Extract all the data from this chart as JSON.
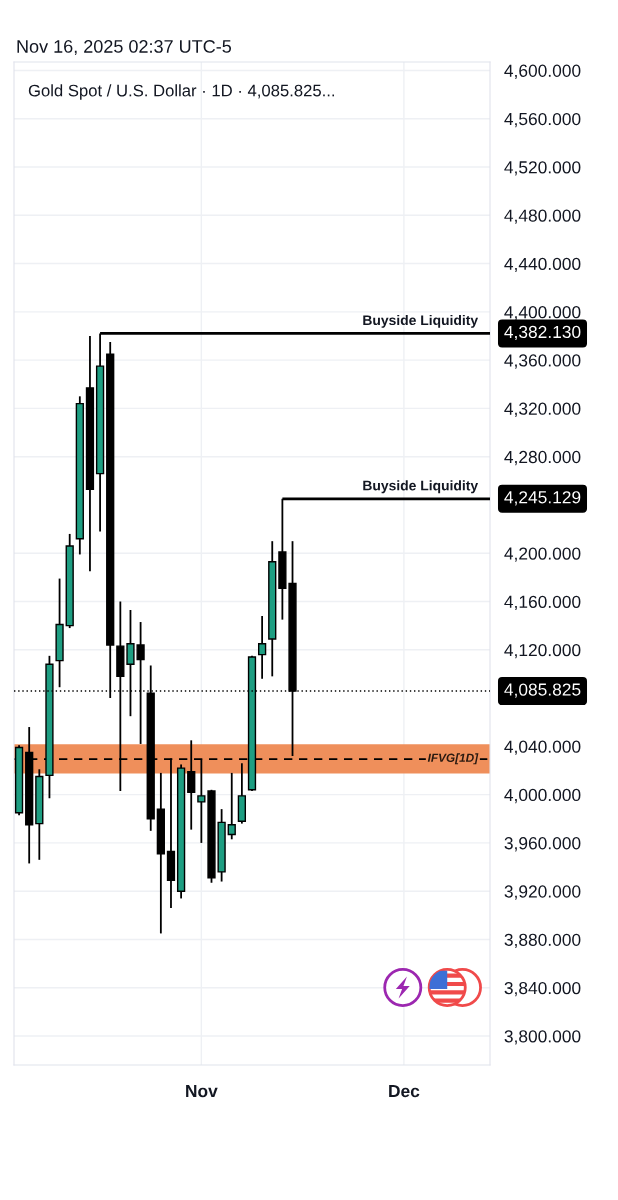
{
  "chart_data": {
    "type": "candlestick",
    "title": "Gold Spot / U.S. Dollar · 1D · 4,085.825...",
    "subtitle": "Nov 16, 2025 02:37 UTC-5",
    "categories": [
      null,
      null,
      null,
      null,
      null,
      null,
      null,
      null,
      null,
      null,
      null,
      null,
      null,
      null,
      null,
      null,
      null,
      null,
      "Nov",
      null,
      null,
      null,
      null,
      null,
      null,
      null,
      null,
      null,
      null,
      null,
      null,
      null,
      null,
      null,
      null,
      null,
      null,
      null,
      "Dec",
      null,
      null,
      null,
      null,
      null,
      null,
      null,
      null
    ],
    "ohlc": [
      [
        3985,
        4041,
        3983,
        4039
      ],
      [
        4035,
        4056,
        3943,
        3975
      ],
      [
        3976,
        4021,
        3946,
        4015
      ],
      [
        4016,
        4115,
        3997,
        4108
      ],
      [
        4111,
        4179,
        4089,
        4141
      ],
      [
        4140,
        4216,
        4138,
        4206
      ],
      [
        4212,
        4330,
        4199,
        4324
      ],
      [
        4337,
        4380,
        4185,
        4253
      ],
      [
        4266,
        4382.13,
        4218,
        4355
      ],
      [
        4365,
        4375,
        4080,
        4124
      ],
      [
        4123,
        4160,
        4003,
        4098
      ],
      [
        4108,
        4153,
        4065,
        4125
      ],
      [
        4124,
        4143,
        4042,
        4112
      ],
      [
        4084,
        4107,
        3970,
        3980
      ],
      [
        3988,
        4018,
        3885,
        3951
      ],
      [
        3953,
        4030,
        3906,
        3929
      ],
      [
        3920,
        4025,
        3914,
        4022
      ],
      [
        4019,
        4045,
        3971,
        4002
      ],
      [
        3994,
        4029,
        3960,
        3999
      ],
      [
        4003,
        4004,
        3927,
        3931
      ],
      [
        3936,
        3988,
        3928,
        3977
      ],
      [
        3967,
        4018,
        3963,
        3975
      ],
      [
        3978,
        4026,
        3976,
        3999
      ],
      [
        4004,
        4115,
        4003,
        4114
      ],
      [
        4116,
        4148,
        4096,
        4125
      ],
      [
        4129,
        4210,
        4098,
        4193
      ],
      [
        4201,
        4245.129,
        4145,
        4171
      ],
      [
        4175,
        4210,
        4032,
        4085.825
      ],
      null,
      null,
      null,
      null,
      null,
      null,
      null,
      null,
      null,
      null,
      null,
      null,
      null,
      null,
      null,
      null,
      null,
      null,
      null
    ],
    "colors": [
      "#1e9e82",
      "#000000",
      "#1e9e82",
      "#1e9e82",
      "#1e9e82",
      "#1e9e82",
      "#1e9e82",
      "#000000",
      "#1e9e82",
      "#000000",
      "#000000",
      "#1e9e82",
      "#000000",
      "#000000",
      "#000000",
      "#000000",
      "#1e9e82",
      "#000000",
      "#1e9e82",
      "#000000",
      "#1e9e82",
      "#1e9e82",
      "#1e9e82",
      "#1e9e82",
      "#1e9e82",
      "#1e9e82",
      "#000000",
      "#000000",
      null,
      null,
      null,
      null,
      null,
      null,
      null,
      null,
      null,
      null,
      null,
      null,
      null,
      null,
      null,
      null,
      null,
      null,
      null
    ],
    "ylim": [
      3776,
      4607
    ],
    "yticks": [
      {
        "value": 3800,
        "label": "3,800.000"
      },
      {
        "value": 3840,
        "label": "3,840.000"
      },
      {
        "value": 3880,
        "label": "3,880.000"
      },
      {
        "value": 3920,
        "label": "3,920.000"
      },
      {
        "value": 3960,
        "label": "3,960.000"
      },
      {
        "value": 4000,
        "label": "4,000.000"
      },
      {
        "value": 4040,
        "label": "4,040.000"
      },
      {
        "value": 4120,
        "label": "4,120.000"
      },
      {
        "value": 4160,
        "label": "4,160.000"
      },
      {
        "value": 4200,
        "label": "4,200.000"
      },
      {
        "value": 4280,
        "label": "4,280.000"
      },
      {
        "value": 4320,
        "label": "4,320.000"
      },
      {
        "value": 4360,
        "label": "4,360.000"
      },
      {
        "value": 4400,
        "label": "4,400.000"
      },
      {
        "value": 4440,
        "label": "4,440.000"
      },
      {
        "value": 4480,
        "label": "4,480.000"
      },
      {
        "value": 4520,
        "label": "4,520.000"
      },
      {
        "value": 4560,
        "label": "4,560.000"
      },
      {
        "value": 4600,
        "label": "4,600.000"
      }
    ],
    "grid": true,
    "ref_lines": [
      {
        "axis": "y",
        "value": 4382.13,
        "label": "Buyside Liquidity",
        "color": "#000000",
        "line_style": "solid"
      },
      {
        "axis": "y",
        "value": 4245.129,
        "label": "Buyside Liquidity",
        "color": "#000000",
        "line_style": "solid"
      },
      {
        "axis": "y",
        "value": 4085.825,
        "color": "#000000",
        "line_style": "dotted"
      },
      {
        "axis": "y",
        "value": 4029.4,
        "color": "#000000",
        "line_style": "dashed"
      }
    ],
    "bands": [
      {
        "axis": "y",
        "from": 4017.6,
        "to": 4041.8,
        "label": "IFVG[1D]",
        "color": "#ef8f5b"
      }
    ],
    "annotations": [
      "4,382.130",
      "4,245.129",
      "4,085.825"
    ]
  }
}
